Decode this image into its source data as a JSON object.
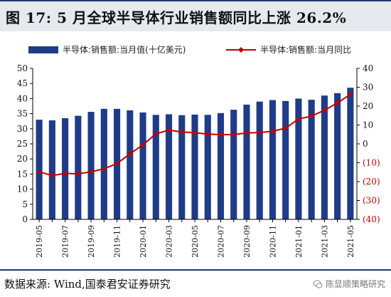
{
  "title": "图 17:  5 月全球半导体行业销售额同比上涨 26.2%",
  "source": "数据来源:  Wind,国泰君安证券研究",
  "watermark": "陈显顺策略研究",
  "colors": {
    "bar": "#1f3c88",
    "line": "#c00000",
    "marker": "#c00000",
    "negative_tick": "#c00000",
    "axis": "#000000"
  },
  "chart_data": {
    "type": "bar",
    "legend_position": "top",
    "categories": [
      "2019-05",
      "2019-06",
      "2019-07",
      "2019-08",
      "2019-09",
      "2019-10",
      "2019-11",
      "2019-12",
      "2020-01",
      "2020-02",
      "2020-03",
      "2020-04",
      "2020-05",
      "2020-06",
      "2020-07",
      "2020-08",
      "2020-09",
      "2020-10",
      "2020-11",
      "2020-12",
      "2021-01",
      "2021-02",
      "2021-03",
      "2021-04",
      "2021-05"
    ],
    "x_tick_labels": [
      "2019-05",
      "2019-07",
      "2019-09",
      "2019-11",
      "2020-01",
      "2020-03",
      "2020-05",
      "2020-07",
      "2020-09",
      "2020-11",
      "2021-01",
      "2021-03",
      "2021-05"
    ],
    "series": [
      {
        "name": "半导体:销售额:当月值(十亿美元)",
        "type": "bar",
        "axis": "left",
        "values": [
          33.0,
          32.8,
          33.5,
          34.3,
          35.6,
          36.6,
          36.6,
          36.1,
          35.4,
          34.6,
          34.8,
          34.5,
          34.7,
          34.6,
          35.2,
          36.3,
          38.0,
          39.0,
          39.5,
          39.2,
          40.0,
          39.6,
          41.0,
          41.8,
          43.6
        ]
      },
      {
        "name": "半导体:销售额:当月同比",
        "type": "line",
        "axis": "right",
        "values": [
          -14.8,
          -16.8,
          -15.6,
          -15.9,
          -14.8,
          -13.2,
          -10.4,
          -5.3,
          -0.5,
          5.3,
          7.3,
          6.3,
          5.9,
          5.2,
          4.9,
          4.9,
          5.8,
          6.0,
          6.7,
          8.3,
          13.2,
          14.7,
          17.8,
          21.7,
          26.2
        ]
      }
    ],
    "y_left": {
      "min": 0,
      "max": 50,
      "ticks": [
        0,
        5,
        10,
        15,
        20,
        25,
        30,
        35,
        40,
        45,
        50
      ]
    },
    "y_right": {
      "min": -40,
      "max": 40,
      "ticks": [
        "40",
        "30",
        "20",
        "10",
        "0",
        "(10)",
        "(20)",
        "(30)",
        "(40)"
      ]
    }
  }
}
